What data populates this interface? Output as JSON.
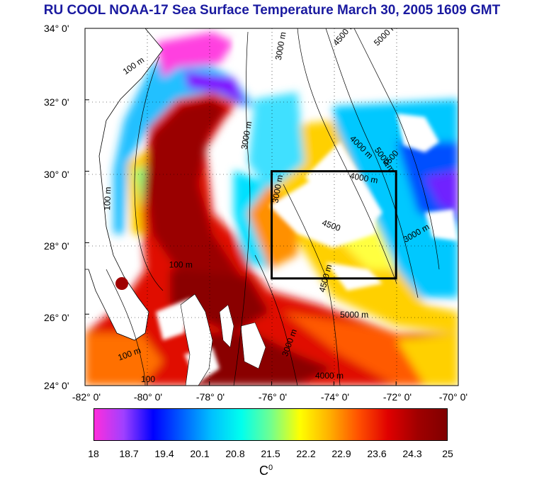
{
  "title": "RU COOL  NOAA-17 Sea Surface Temperature March 30, 2005 1609 GMT",
  "map": {
    "lon_range": [
      -82,
      -70
    ],
    "lat_range": [
      24,
      34
    ],
    "y_ticks": [
      "34° 0'",
      "32° 0'",
      "30° 0'",
      "28° 0'",
      "26° 0'",
      "24° 0'"
    ],
    "x_ticks": [
      "-82° 0'",
      "-80° 0'",
      "-78° 0'",
      "-76° 0'",
      "-74° 0'",
      "-72° 0'",
      "-70° 0'"
    ],
    "grid": "dotted",
    "study_box": {
      "lon": [
        -76,
        -72
      ],
      "lat": [
        27,
        30
      ]
    },
    "contour_labels": [
      {
        "text": "100 m",
        "lon": -80.7,
        "lat": 32.7,
        "rot": -35
      },
      {
        "text": "100 m",
        "lon": -81.2,
        "lat": 28.9,
        "rot": -88
      },
      {
        "text": "100 m",
        "lon": -79.3,
        "lat": 27.3,
        "rot": 0
      },
      {
        "text": "100 m",
        "lon": -80.9,
        "lat": 24.7,
        "rot": -20
      },
      {
        "text": "100",
        "lon": -80.2,
        "lat": 24.1,
        "rot": 0
      },
      {
        "text": "3000 m",
        "lon": -75.7,
        "lat": 33.1,
        "rot": -80
      },
      {
        "text": "4500 m",
        "lon": -73.9,
        "lat": 33.5,
        "rot": -50
      },
      {
        "text": "5000 m",
        "lon": -72.6,
        "lat": 33.5,
        "rot": -45
      },
      {
        "text": "4000 m",
        "lon": -73.5,
        "lat": 30.9,
        "rot": 45
      },
      {
        "text": "5000 m",
        "lon": -72.7,
        "lat": 30.6,
        "rot": 55
      },
      {
        "text": "4500",
        "lon": -72.3,
        "lat": 30.1,
        "rot": -50
      },
      {
        "text": "4000 m",
        "lon": -73.5,
        "lat": 29.8,
        "rot": 10
      },
      {
        "text": "4500",
        "lon": -74.4,
        "lat": 28.5,
        "rot": 20
      },
      {
        "text": "3000 m",
        "lon": -76.8,
        "lat": 30.6,
        "rot": -80
      },
      {
        "text": "3000 m",
        "lon": -75.8,
        "lat": 29.1,
        "rot": -80
      },
      {
        "text": "3000 m",
        "lon": -71.7,
        "lat": 28.0,
        "rot": -30
      },
      {
        "text": "4500 m",
        "lon": -74.3,
        "lat": 26.6,
        "rot": -75
      },
      {
        "text": "5000 m",
        "lon": -73.8,
        "lat": 25.9,
        "rot": 0
      },
      {
        "text": "3000 m",
        "lon": -75.5,
        "lat": 24.8,
        "rot": -70
      },
      {
        "text": "4000 m",
        "lon": -74.6,
        "lat": 24.2,
        "rot": 0
      }
    ]
  },
  "colorbar": {
    "ticks": [
      "18",
      "18.7",
      "19.4",
      "20.1",
      "20.8",
      "21.5",
      "22.2",
      "22.9",
      "23.6",
      "24.3",
      "25"
    ],
    "unit": "C",
    "unit_sup": "0",
    "colors": [
      "#ff2ddc",
      "#a040ff",
      "#0000ff",
      "#0060ff",
      "#00c0ff",
      "#00ffee",
      "#70ff90",
      "#ffff00",
      "#ffb000",
      "#ff5000",
      "#e00000",
      "#a00000",
      "#800000"
    ]
  }
}
